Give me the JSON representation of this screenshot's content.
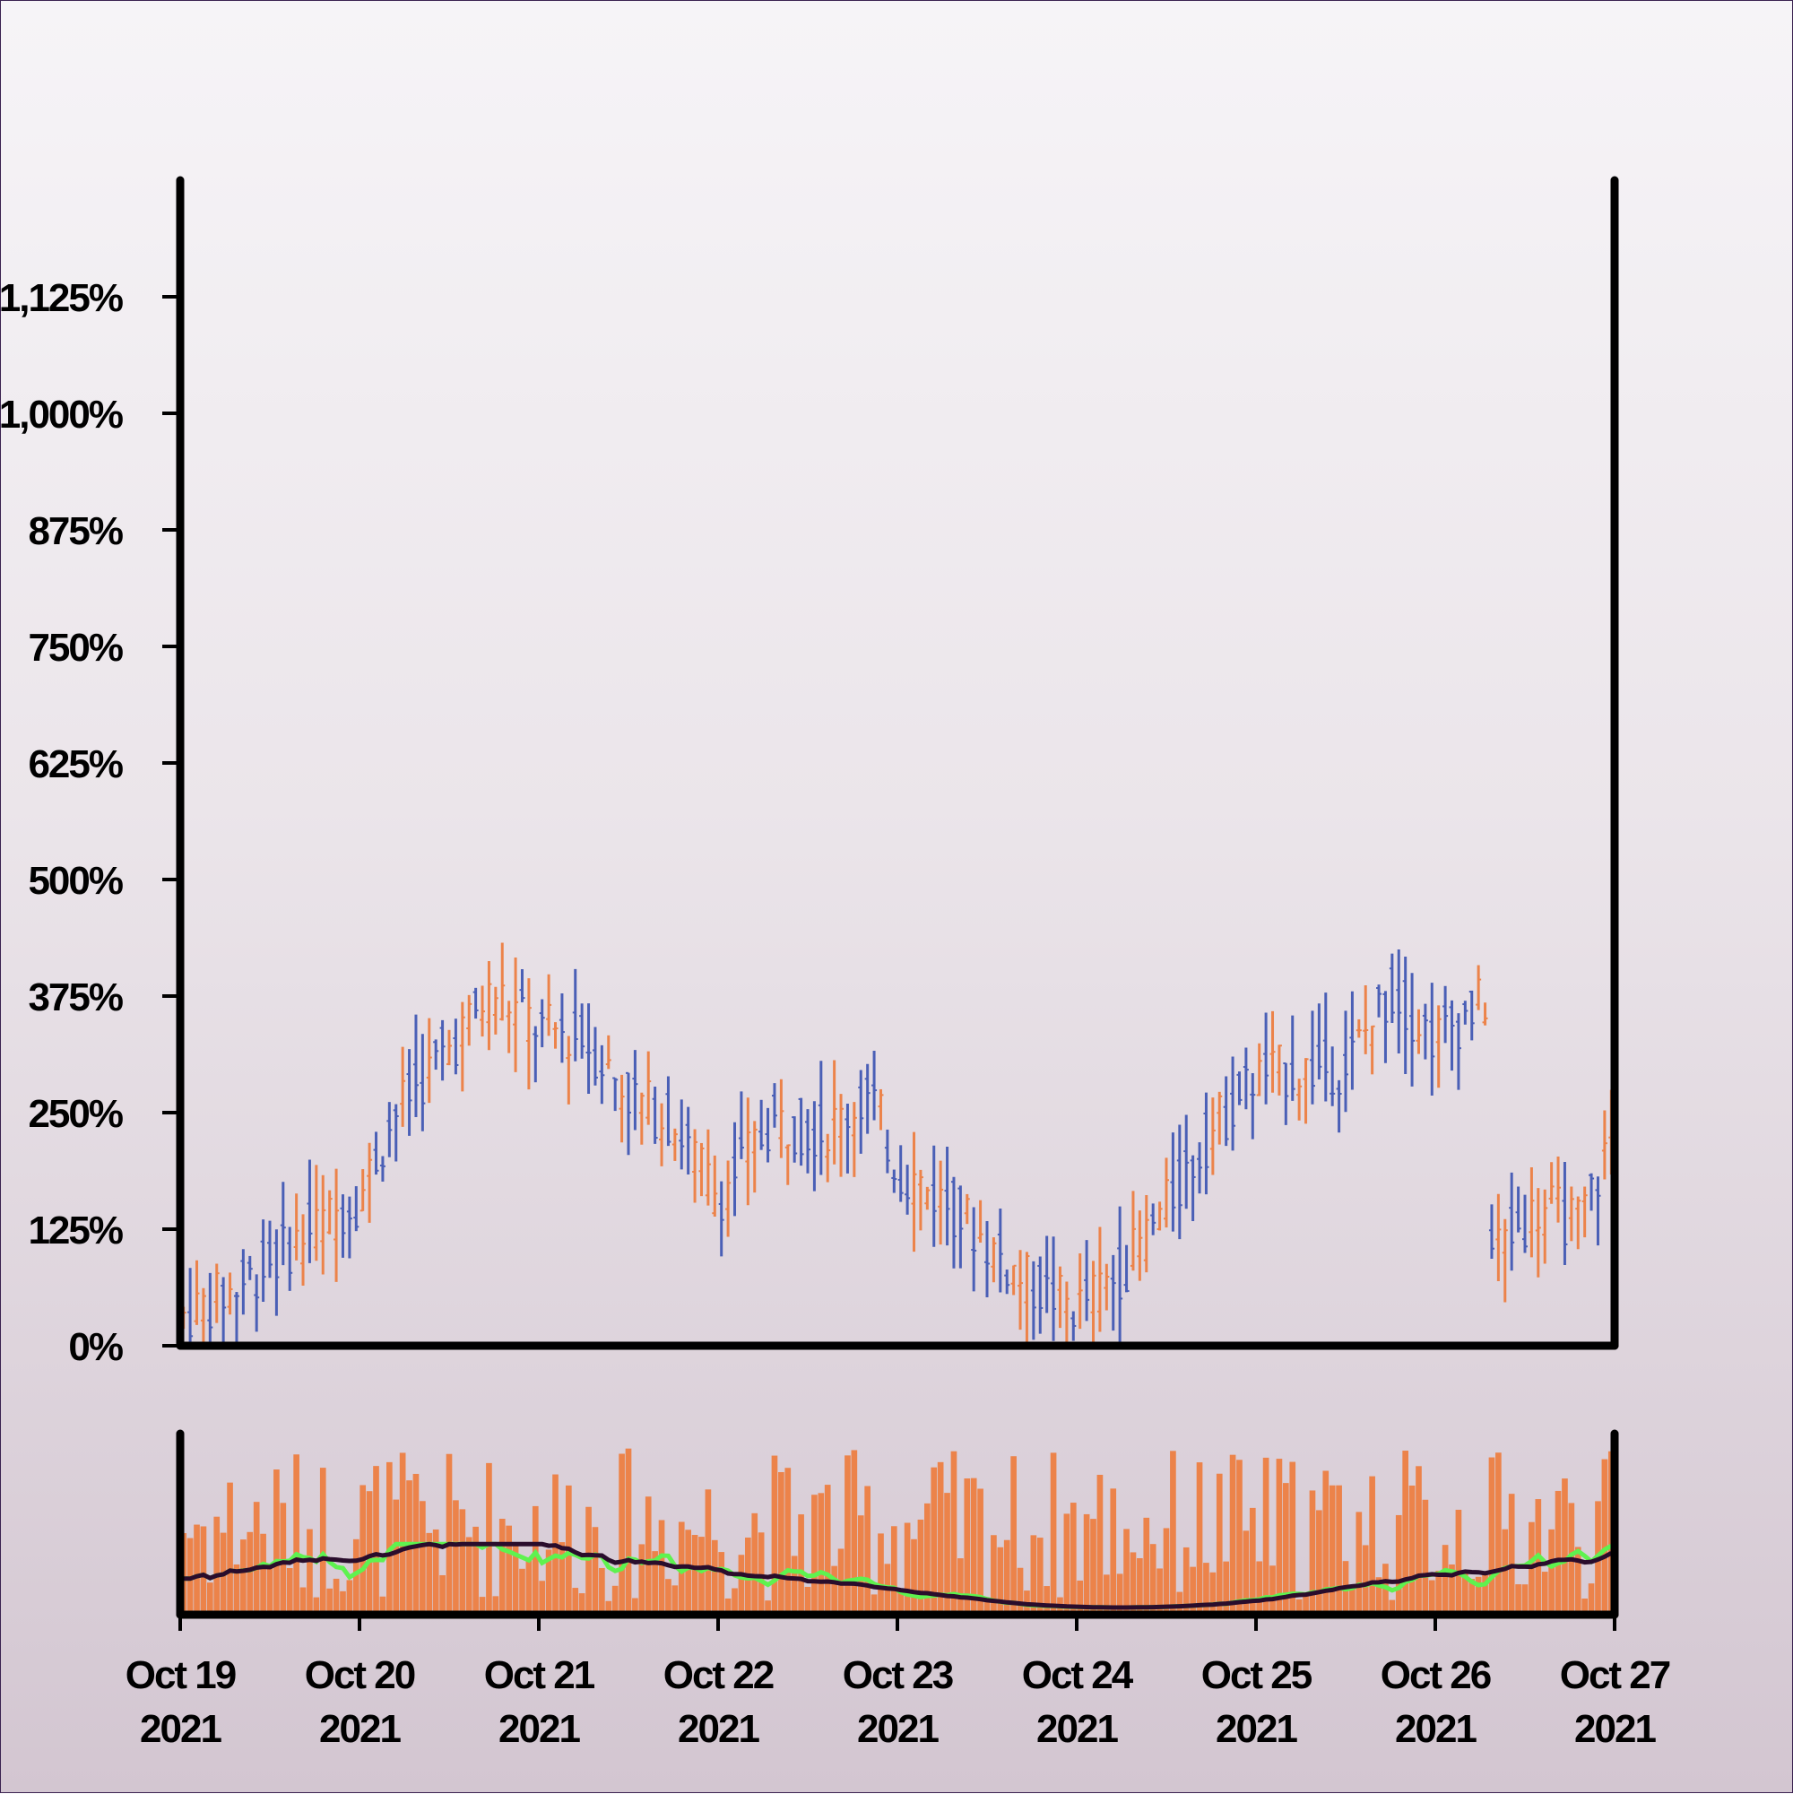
{
  "chart_data": {
    "type": "ohlc",
    "title": "",
    "y_axis": {
      "ticks": [
        "0%",
        "125%",
        "250%",
        "375%",
        "500%",
        "625%",
        "750%",
        "875%",
        "1,000%",
        "1,125%"
      ],
      "tick_values": [
        0,
        125,
        250,
        375,
        500,
        625,
        750,
        875,
        1000,
        1125
      ],
      "range": [
        0,
        1250
      ]
    },
    "x_axis": {
      "ticks": [
        {
          "line1": "Oct 19",
          "line2": "2021"
        },
        {
          "line1": "Oct 20",
          "line2": "2021"
        },
        {
          "line1": "Oct 21",
          "line2": "2021"
        },
        {
          "line1": "Oct 22",
          "line2": "2021"
        },
        {
          "line1": "Oct 23",
          "line2": "2021"
        },
        {
          "line1": "Oct 24",
          "line2": "2021"
        },
        {
          "line1": "Oct 25",
          "line2": "2021"
        },
        {
          "line1": "Oct 26",
          "line2": "2021"
        },
        {
          "line1": "Oct 27",
          "line2": "2021"
        }
      ],
      "range": [
        "Oct 19 2021",
        "Oct 27 2021"
      ]
    },
    "price_path": [
      {
        "day": 0.0,
        "value": 30
      },
      {
        "day": 0.3,
        "value": 60
      },
      {
        "day": 0.7,
        "value": 120
      },
      {
        "day": 1.0,
        "value": 160
      },
      {
        "day": 1.2,
        "value": 250
      },
      {
        "day": 1.5,
        "value": 320
      },
      {
        "day": 1.75,
        "value": 380
      },
      {
        "day": 2.0,
        "value": 340
      },
      {
        "day": 2.25,
        "value": 330
      },
      {
        "day": 2.5,
        "value": 270
      },
      {
        "day": 2.75,
        "value": 240
      },
      {
        "day": 3.0,
        "value": 160
      },
      {
        "day": 3.3,
        "value": 240
      },
      {
        "day": 3.6,
        "value": 230
      },
      {
        "day": 3.85,
        "value": 270
      },
      {
        "day": 4.0,
        "value": 190
      },
      {
        "day": 4.3,
        "value": 150
      },
      {
        "day": 4.7,
        "value": 70
      },
      {
        "day": 5.0,
        "value": 40
      },
      {
        "day": 5.25,
        "value": 80
      },
      {
        "day": 5.5,
        "value": 150
      },
      {
        "day": 5.75,
        "value": 230
      },
      {
        "day": 6.0,
        "value": 290
      },
      {
        "day": 6.5,
        "value": 300
      },
      {
        "day": 6.75,
        "value": 380
      },
      {
        "day": 7.0,
        "value": 330
      },
      {
        "day": 7.28,
        "value": 370
      },
      {
        "day": 7.3,
        "value": 100
      },
      {
        "day": 7.6,
        "value": 150
      },
      {
        "day": 7.8,
        "value": 130
      },
      {
        "day": 8.0,
        "value": 230
      }
    ],
    "bars": {
      "count": 216,
      "up_color": "#ec834a",
      "down_color": "#4a5fb6",
      "spread": 60
    },
    "volume": {
      "bar_color": "#ec834a",
      "ma_short_color": "#5ef24f",
      "ma_long_color": "#2a0d2c",
      "range": [
        0,
        100
      ]
    },
    "grid": false,
    "legend": "none"
  }
}
